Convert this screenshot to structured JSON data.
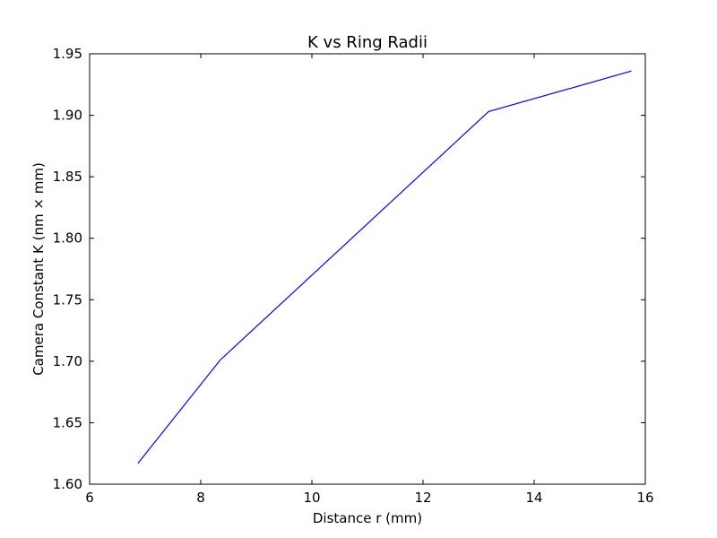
{
  "chart_data": {
    "type": "line",
    "title": "K vs Ring Radii",
    "xlabel": "Distance r (mm)",
    "ylabel": "Camera Constant K (nm × mm)",
    "xlim": [
      6,
      16
    ],
    "ylim": [
      1.6,
      1.95
    ],
    "xticks": [
      "6",
      "8",
      "10",
      "12",
      "14",
      "16"
    ],
    "yticks": [
      "1.60",
      "1.65",
      "1.70",
      "1.75",
      "1.80",
      "1.85",
      "1.90",
      "1.95"
    ],
    "grid": false,
    "line_color": "#0000ff",
    "series": [
      {
        "x": [
          6.87,
          8.35,
          13.18,
          15.75
        ],
        "y": [
          1.617,
          1.701,
          1.903,
          1.936
        ]
      }
    ]
  }
}
